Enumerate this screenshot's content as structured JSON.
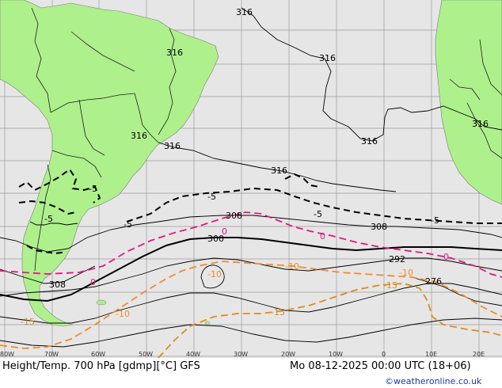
{
  "footer": {
    "title": "Height/Temp. 700 hPa [gdmp][°C] GFS",
    "valid_time": "Mo 08-12-2025 00:00 UTC (18+06)",
    "credit": "©weatheronline.co.uk"
  },
  "longitude_ticks": [
    "80W",
    "70W",
    "60W",
    "50W",
    "40W",
    "30W",
    "20W",
    "10W",
    "0",
    "10E",
    "20E"
  ],
  "height_contour_labels": [
    "316",
    "316",
    "316",
    "316",
    "316",
    "316",
    "316",
    "316",
    "308",
    "308",
    "308",
    "300",
    "292",
    "276"
  ],
  "temperature_contour_labels": [
    "-5",
    "-5",
    "-5",
    "-5",
    "-5",
    "-5",
    "0",
    "0",
    "0",
    "0",
    "-10",
    "-10",
    "-10",
    "-10",
    "-15",
    "-15",
    "-15"
  ],
  "colors": {
    "ocean": "#e6e6e6",
    "land": "#aef08c",
    "grid": "#9a9a9a",
    "height_contour": "#000000",
    "temp_below_minus5": "#000000",
    "temp_0": "#e0197d",
    "temp_minus10": "#f08c28",
    "temp_minus15": "#dc8c1e",
    "border": "#1e1e1e",
    "credit": "#1a3aa0"
  }
}
